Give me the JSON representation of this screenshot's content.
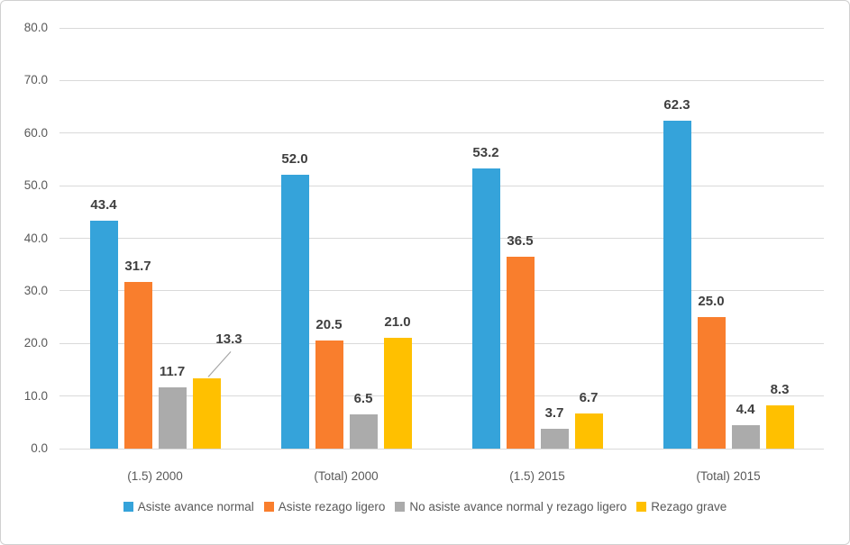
{
  "chart_data": {
    "type": "bar",
    "title": "",
    "xlabel": "",
    "ylabel": "",
    "categories": [
      "(1.5) 2000",
      "(Total) 2000",
      "(1.5) 2015",
      "(Total) 2015"
    ],
    "series": [
      {
        "name": "Asiste avance normal",
        "color": "#35A3DA",
        "values": [
          43.4,
          52.0,
          53.2,
          62.3
        ]
      },
      {
        "name": "Asiste rezago ligero",
        "color": "#F97E2D",
        "values": [
          31.7,
          20.5,
          36.5,
          25.0
        ]
      },
      {
        "name": "No asiste avance normal y rezago ligero",
        "color": "#ABABAB",
        "values": [
          11.7,
          6.5,
          3.7,
          4.4
        ]
      },
      {
        "name": "Rezago grave",
        "color": "#FFC000",
        "values": [
          13.3,
          21.0,
          6.7,
          8.3
        ]
      }
    ],
    "ylim": [
      0,
      80
    ],
    "yticks": [
      0,
      10,
      20,
      30,
      40,
      50,
      60,
      70,
      80
    ],
    "ytick_decimals": 1,
    "value_label_decimals": 1,
    "grid": true,
    "legend_position": "bottom",
    "gridline_color": "#D9D9D9",
    "axis_text_color": "#595959",
    "value_label_color": "#3F3F3F",
    "moved_labels": [
      {
        "category_index": 0,
        "series_index": 3,
        "dx": 25,
        "dy": -26,
        "leader_line": true,
        "leader_color": "#A6A6A6"
      }
    ]
  }
}
